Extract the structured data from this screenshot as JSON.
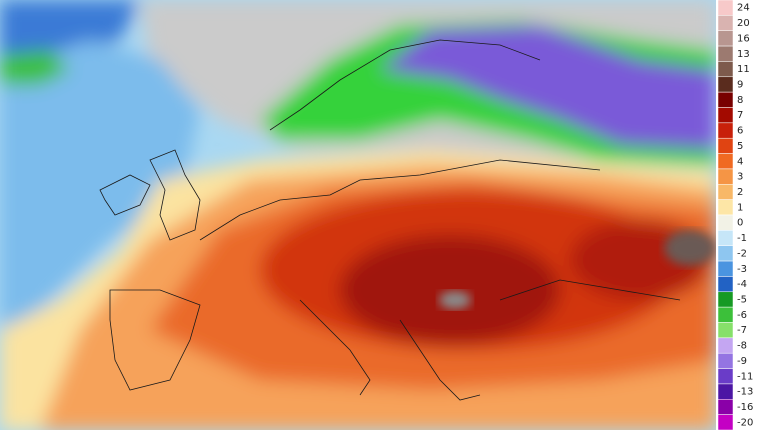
{
  "colorbar": {
    "ticks": [
      24,
      20,
      16,
      13,
      11,
      9,
      8,
      7,
      6,
      5,
      4,
      3,
      2,
      1,
      0,
      -1,
      -2,
      -3,
      -4,
      -5,
      -6,
      -7,
      -8,
      -9,
      -11,
      -13,
      -16,
      -20
    ],
    "colors": [
      "#f7c9c9",
      "#d9b3b0",
      "#b89690",
      "#9c7a70",
      "#7d5a4c",
      "#5a2c1e",
      "#780000",
      "#a30a00",
      "#c8200a",
      "#e04412",
      "#f06a22",
      "#f59545",
      "#f8b868",
      "#fde6a6",
      "#f2f2e6",
      "#c6e6f8",
      "#8ec6f0",
      "#4a94e0",
      "#2262c4",
      "#169a24",
      "#3cc03a",
      "#86e06a",
      "#c4a6f2",
      "#9474e2",
      "#6a3cc8",
      "#4c16a4",
      "#8a00a8",
      "#c400c4"
    ]
  }
}
